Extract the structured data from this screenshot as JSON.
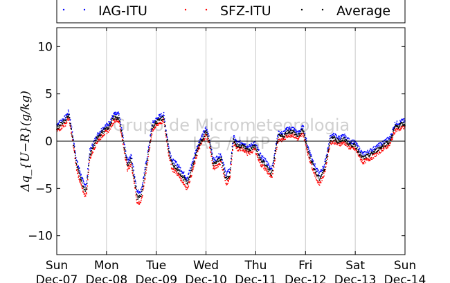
{
  "chart_data": {
    "type": "scatter",
    "ylabel": "Δq_{U−R}(g/kg)",
    "ylim": [
      -12,
      12
    ],
    "y_ticks": [
      -10,
      -5,
      0,
      5,
      10
    ],
    "xlim": [
      0,
      7
    ],
    "x_ticks": [
      {
        "day": "Sun",
        "date": "Dec-07"
      },
      {
        "day": "Mon",
        "date": "Dec-08"
      },
      {
        "day": "Tue",
        "date": "Dec-09"
      },
      {
        "day": "Wed",
        "date": "Dec-10"
      },
      {
        "day": "Thu",
        "date": "Dec-11"
      },
      {
        "day": "Fri",
        "date": "Dec-12"
      },
      {
        "day": "Sat",
        "date": "Dec-13"
      },
      {
        "day": "Sun",
        "date": "Dec-14"
      }
    ],
    "vertical_grid": true,
    "zero_line": true,
    "legend_position": "top (outside plot)",
    "series": [
      {
        "name": "IAG-ITU",
        "color": "#0000ff",
        "offset": 0.35
      },
      {
        "name": "SFZ-ITU",
        "color": "#ff0000",
        "offset": -0.35
      },
      {
        "name": "Average",
        "color": "#000000",
        "offset": 0
      }
    ],
    "average_profile": {
      "x": [
        0,
        0.18,
        0.24,
        0.3,
        0.4,
        0.55,
        0.6,
        0.66,
        0.8,
        0.92,
        1.04,
        1.15,
        1.25,
        1.42,
        1.5,
        1.62,
        1.7,
        1.82,
        1.92,
        2.04,
        2.15,
        2.25,
        2.32,
        2.4,
        2.5,
        2.62,
        2.74,
        2.85,
        3.0,
        3.06,
        3.15,
        3.3,
        3.4,
        3.48,
        3.55,
        3.62,
        3.75,
        3.85,
        3.98,
        4.1,
        4.2,
        4.32,
        4.45,
        4.55,
        4.65,
        4.75,
        4.85,
        4.95,
        5.05,
        5.15,
        5.22,
        5.28,
        5.38,
        5.5,
        5.58,
        5.65,
        5.78,
        5.88,
        6.0,
        6.15,
        6.28,
        6.42,
        6.55,
        6.7,
        6.8,
        6.88,
        6.94,
        7.0
      ],
      "y": [
        1.4,
        2.2,
        2.8,
        1.0,
        -2.5,
        -5.2,
        -5.0,
        -1.5,
        0.2,
        1.0,
        1.5,
        2.5,
        2.5,
        -2.5,
        -2.0,
        -6.0,
        -5.8,
        -2.0,
        1.5,
        2.2,
        2.5,
        -1.0,
        -2.5,
        -2.8,
        -3.5,
        -4.5,
        -2.5,
        -0.5,
        1.0,
        0.2,
        -2.5,
        -1.8,
        -4.0,
        -3.5,
        0.2,
        -0.5,
        -0.5,
        -1.0,
        -0.5,
        -2.0,
        -2.5,
        -3.5,
        0.5,
        0.5,
        1.0,
        1.0,
        0.5,
        1.2,
        -1.0,
        -2.5,
        -3.5,
        -4.0,
        -3.0,
        0.2,
        0.3,
        0.0,
        0.2,
        -0.3,
        -0.5,
        -1.8,
        -1.5,
        -1.0,
        -0.5,
        0.0,
        1.5,
        1.6,
        1.8,
        1.8
      ]
    }
  },
  "watermark": {
    "line1": "Grupo de Micrometeorologia",
    "line2": "IAG / USP"
  }
}
